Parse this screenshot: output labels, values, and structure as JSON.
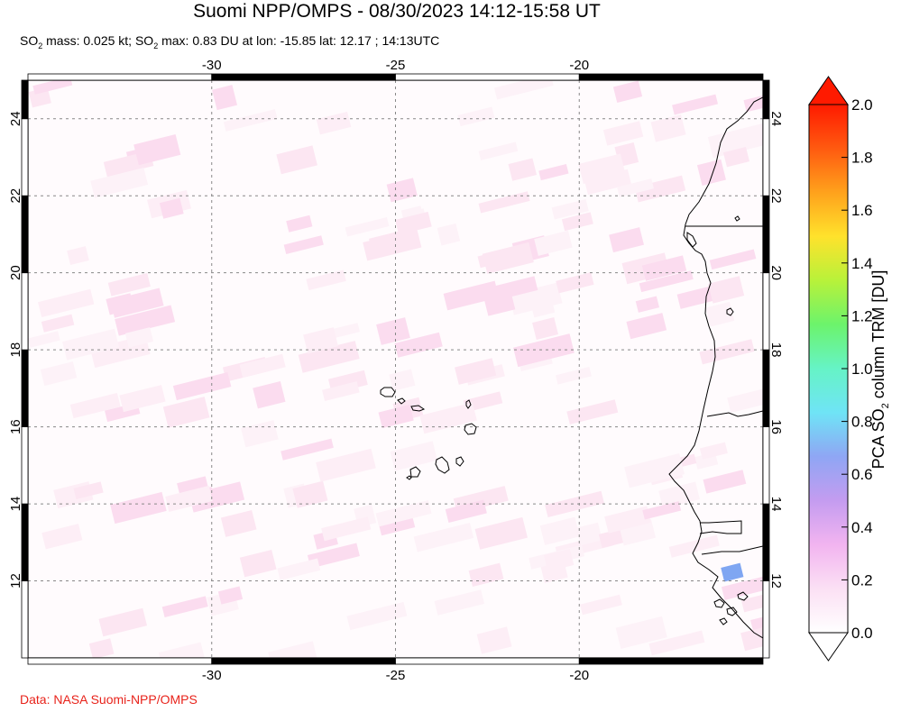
{
  "header": {
    "title": "Suomi NPP/OMPS - 08/30/2023 14:12-15:58 UT",
    "subtitle_parts": [
      "SO",
      "2",
      " mass: 0.025 kt; SO",
      "2",
      " max: 0.83 DU at lon: -15.85 lat: 12.17 ; 14:13UTC"
    ]
  },
  "map": {
    "lon_range": [
      -35,
      -15
    ],
    "lat_range": [
      10,
      25
    ],
    "lon_ticks": [
      -30,
      -25,
      -20
    ],
    "lon_tick_labels": [
      "-30",
      "-25",
      "-20"
    ],
    "lat_ticks": [
      12,
      14,
      16,
      18,
      20,
      22,
      24
    ],
    "lat_tick_labels": [
      "12",
      "14",
      "16",
      "18",
      "20",
      "22",
      "24"
    ],
    "gridlines": true,
    "land_boundaries": "coastline and country borders (Cape Verde, Western Sahara, Mauritania, Senegal, Gambia, Guinea-Bissau)",
    "max_so2": {
      "lon": -15.85,
      "lat": 12.17,
      "value": 0.83,
      "color": "#7fa6f2"
    }
  },
  "colorbar": {
    "title_parts": [
      "PCA SO",
      "2",
      " column TRM [DU]"
    ],
    "min": 0.0,
    "max": 2.0,
    "tick_values": [
      0.0,
      0.2,
      0.4,
      0.6,
      0.8,
      1.0,
      1.2,
      1.4,
      1.6,
      1.8,
      2.0
    ],
    "tick_labels": [
      "0.0",
      "0.2",
      "0.4",
      "0.6",
      "0.8",
      "1.0",
      "1.2",
      "1.4",
      "1.6",
      "1.8",
      "2.0"
    ],
    "colors": [
      "#ffffff",
      "#fbe0f4",
      "#f2b4f0",
      "#c49cf0",
      "#8fa6f4",
      "#6fe4f6",
      "#66f3c6",
      "#6cf36c",
      "#b8f23a",
      "#ffe22c",
      "#ffa21c",
      "#ff5a10",
      "#ff1a00"
    ]
  },
  "footer": {
    "credit": "Data: NASA Suomi-NPP/OMPS"
  }
}
